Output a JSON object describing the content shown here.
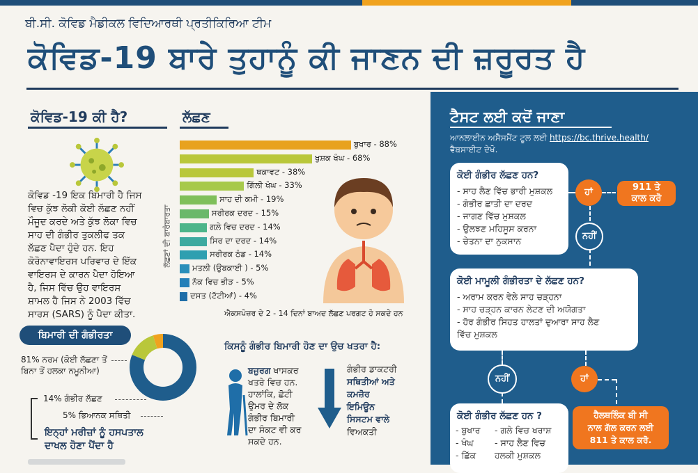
{
  "header": {
    "org": "ਬੀ.ਸੀ. ਕੋਵਿਡ ਮੈਡੀਕਲ ਵਿਦਿਆਰਥੀ ਪ੍ਰਤੀਕਿਰਿਆ ਟੀਮ",
    "title": "ਕੋਵਿਡ-19 ਬਾਰੇ ਤੁਹਾਨੂੰ ਕੀ ਜਾਣਨ ਦੀ ਜ਼ਰੂਰਤ ਹੈ"
  },
  "what_is": {
    "heading": "ਕੋਵਿਡ-19 ਕੀ ਹੈ?",
    "lines": [
      "ਕੋਵਿਡ -19 ਇਕ ਬਿਮਾਰੀ ਹੈ ਜਿਸ",
      "ਵਿਚ ਕੁੱਝ ਲੋਕੀ ਕੋਈ ਲੱਛਣ ਨਹੀਂ",
      "ਮੌਜੂਦ ਕਰਦੇ ਅਤੇ ਕੁੱਝ ਲੋਕਾ ਵਿਚ",
      "ਸਾਹ ਦੀ ਗੰਭੀਰ ਤੁਕਲੀਫ ਤਕ",
      "ਲੱਛਣ ਪੈਦਾ ਹੁੰਦੇ ਹਨ. ਇਹ",
      "ਕੋਰੋਨਾਵਾਇਰਸ ਪਰਿਵਾਰ ਦੇ ਇੱਕ",
      "ਵਾਇਰਸ ਦੇ ਕਾਰਨ ਪੈਦਾ ਹੋਇਆ",
      "ਹੈ, ਜਿਸ ਵਿੱਚ ਉਹ ਵਾਇਰਸ",
      "ਸ਼ਾਮਲ ਹੈ ਜਿਸ ਨੇ 2003 ਵਿੱਚ",
      "ਸਾਰਸ (SARS) ਨੂੰ ਪੈਦਾ ਕੀਤਾ."
    ]
  },
  "symptoms": {
    "heading": "ਲੱਛਣ",
    "vertical_label": "ਲੱਛਣਾਂ ਦੀ ਬਾਰੰਬਾਰਤਾ",
    "footnote": "ਐਕਸਪੋਜ਼ਰ ਦੇ 2 - 14 ਦਿਨਾਂ ਬਾਅਦ ਲੱਛਣ ਪਰਗਟ ਹੋ ਸਕਦੇ ਹਨ"
  },
  "chart_data": {
    "type": "bar",
    "orientation": "horizontal",
    "categories": [
      "ਬੁਖਾਰ",
      "ਖੁਸ਼ਕ ਖੰਘ",
      "ਥਕਾਵਟ",
      "ਗਿੱਲੀ ਖੰਘ",
      "ਸਾਹ ਦੀ ਕਮੀ",
      "ਸਰੀਰਕ ਦਰਦ",
      "ਗਲ਼ੇ ਵਿਚ ਦਰਦ",
      "ਸਿਰ ਦਾ ਦਰਦ",
      "ਸਰੀਰਕ ਠੰਡ",
      "ਮਤਲੀ (ਉਬਕਾਈ )",
      "ਨੱਕ ਵਿਚ ਭੀੜ",
      "ਦਸਤ (ਟੱਟੀਆਂ)"
    ],
    "values": [
      88,
      68,
      38,
      33,
      19,
      15,
      14,
      14,
      14,
      5,
      5,
      4
    ],
    "value_labels": [
      "88%",
      "68%",
      "38%",
      "33%",
      "19%",
      "15%",
      "14%",
      "14%",
      "14%",
      "5%",
      "5%",
      "4%"
    ],
    "colors": [
      "#e8a21e",
      "#b9c73a",
      "#b9c73a",
      "#a7c94a",
      "#7fbf5a",
      "#6ab86a",
      "#4db58a",
      "#3eaaa0",
      "#2f9fb0",
      "#2a8fba",
      "#2580b8",
      "#1f6ea8"
    ]
  },
  "severity": {
    "badge": "ਬਿਮਾਰੀ ਦੀ ਗੰਭੀਰਤਾ",
    "mild_label_1": "81% ਨਰਮ (ਕੋਈ ਲੱਛਣਾ ਤੋਂ",
    "mild_label_2": "ਬਿਨਾ ਤੋਂ ਹਲਕਾ ਨਮੂਨੀਆ)",
    "severe_label": "14% ਗੰਭੀਰ ਲੱਛਣ",
    "critical_label": "5% ਭਿਆਨਕ ਸਥਿਤੀ",
    "hospital_1": "ਇਨ੍ਹਾਂ ਮਰੀਜ਼ਾਂ ਨੂੰ ਹਸਪਤਾਲ",
    "hospital_2": "ਦਾਖਲ ਹੋਣਾ ਪੈਂਦਾ ਹੈ",
    "pie": [
      {
        "label": "ਨਰਮ",
        "value": 81,
        "color": "#1f5d8c"
      },
      {
        "label": "ਗੰਭੀਰ",
        "value": 14,
        "color": "#b9c73a"
      },
      {
        "label": "ਭਿਆਨਕ",
        "value": 5,
        "color": "#f0a21e"
      }
    ]
  },
  "risk": {
    "heading": "ਕਿਸਨੂੰ ਗੰਭੀਰ ਬਿਮਾਰੀ ਹੋਣ ਦਾ ਉਚ ਖਤਰਾ ਹੈ:",
    "elderly_bold": "ਬਜ਼ੁਰਗ",
    "elderly_lines": [
      "ਖਾਸਕਰ",
      "ਖਤਰੇ ਵਿਚ ਹਨ.",
      "ਹਾਲਾਂਕਿ, ਛੋਟੀ",
      "ਉਮਰ ਦੇ ਲੋਕ",
      "ਗੰਭੀਰ ਬਿਮਾਰੀ",
      "ਦਾ ਸੰਕਟ ਵੀ ਕਰ",
      "ਸਕਦੇ ਹਨ."
    ],
    "medical_lines": [
      "ਗੰਭੀਰ ਡਾਕਟਰੀ",
      "ਸਥਿਤੀਆਂ ਅਤੇ",
      "ਕਮਜ਼ੋਰ",
      "ਇਮਿਊਨ",
      "ਸਿਸਟਮ ਵਾਲੇ",
      "ਵਿਅਕਤੀ"
    ]
  },
  "testing": {
    "heading": "ਟੈਸਟ ਲਈ ਕਦੋਂ ਜਾਣਾ",
    "sub_line1_a": "ਆਨਲਾਈਨ ਅਸੈਸਮੈਂਟ ਟੂਲ ਲਈ ",
    "sub_link": "https://bc.thrive.health/",
    "sub_line2": "ਵੈਬਸਾਈਟ ਦੇਖੋ.",
    "card1_heading": "ਕੋਈ ਗੰਭੀਰ ਲੱਛਣ ਹਨ?",
    "card1_items": [
      "- ਸਾਹ ਲੈਣ ਵਿੱਚ ਭਾਰੀ ਮੁਸ਼ਕਲ",
      "- ਗੰਭੀਰ ਛਾਤੀ ਦਾ ਦਰਦ",
      "- ਜਾਗਣ ਵਿੱਚ ਮੁਸ਼ਕਲ",
      "- ਉਲਝਣ ਮਹਿਸੂਸ ਕਰਨਾ",
      "- ਚੇਤਨਾ ਦਾ ਨੁਕਸਾਨ"
    ],
    "yes_label": "ਹਾਂ",
    "no_label": "ਨਹੀਂ",
    "call_911_1": "911 ਤੇ",
    "call_911_2": "ਕਾਲ ਕਰੋ",
    "card2_heading": "ਕੋਈ ਮਾਮੂਲੀ ਗੰਭੀਰਤਾ ਦੇ ਲੱਛਣ ਹਨ?",
    "card2_items": [
      "- ਅਰਾਮ ਕਰਨ ਵੇਲੇ ਸਾਹ ਚੜ੍ਹਨਾ",
      "- ਸਾਹ ਚੜ੍ਹਨ ਕਾਰਨ ਲੇਟਣ ਦੀ ਅਯੋਗਤਾ",
      "- ਹੋਰ ਗੰਭੀਰ ਸਿਹਤ ਹਾਲਤਾਂ ਦੁਆਰਾ ਸਾਹ ਲੈਣ",
      "ਵਿੱਚ ਮੁਸ਼ਕਲ"
    ],
    "card3_heading": "ਕੋਈ ਗੰਭੀਰ ਲੱਛਣ ਹਨ ?",
    "card3_col1": [
      "- ਬੁਖਾਰ",
      "- ਖੰਘ",
      "- ਛਿੱਕ"
    ],
    "card3_col2": [
      "- ਗਲੇ ਵਿਚ ਖਰਾਸ਼",
      "- ਸਾਹ ਲੈਣ ਵਿਚ",
      "ਹਲਕੀ ਮੁਸ਼ਕਲ"
    ],
    "healthlink_1": "ਹੈਲਥਲਿੰਕ ਬੀ ਸੀ",
    "healthlink_2": "ਨਾਲ ਗੱਲ ਕਰਨ ਲਈ",
    "healthlink_3": "811 ਤੇ ਕਾਲ ਕਰੋ."
  }
}
